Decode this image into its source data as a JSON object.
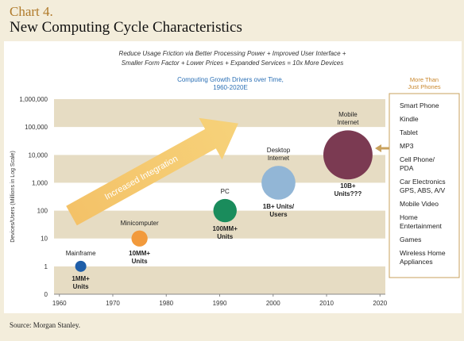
{
  "chart_data": {
    "type": "bubble",
    "chart_number": "Chart 4.",
    "title": "New Computing Cycle Characteristics",
    "note": "Reduce Usage Friction via Better Processing Power + Improved User Interface +\nSmaller Form Factor + Lower Prices + Expanded Services = 10x More Devices",
    "subtitle": "Computing Growth Drivers over Time,\n1960-2020E",
    "ylabel": "Devices/Users (Millions in Log Scale)",
    "annotation": "Increased Integration",
    "source": "Source: Morgan Stanley.",
    "x": [
      1964,
      1975,
      1991,
      2001,
      2014
    ],
    "values": [
      1,
      10,
      100,
      1000,
      10000
    ],
    "labels": [
      "Mainframe",
      "Minicomputer",
      "PC",
      "Desktop\nInternet",
      "Mobile\nInternet"
    ],
    "value_labels": [
      "1MM+\nUnits",
      "10MM+\nUnits",
      "100MM+\nUnits",
      "1B+ Units/\nUsers",
      "10B+\nUnits???"
    ],
    "colors": [
      "#1f5ea8",
      "#f29a3c",
      "#1a8c5c",
      "#92b6d6",
      "#7b3a52"
    ],
    "xlim": [
      1959,
      2021
    ],
    "xticks": [
      1960,
      1970,
      1980,
      1990,
      2000,
      2010,
      2020
    ],
    "ylim": [
      0.1,
      1000000
    ],
    "yticks": [
      {
        "value": 0.1,
        "label": "0"
      },
      1,
      10,
      100,
      {
        "value": 1000,
        "label": "1,000"
      },
      {
        "value": 10000,
        "label": "10,000"
      },
      {
        "value": 100000,
        "label": "100,000"
      },
      {
        "value": 1000000,
        "label": "1,000,000"
      }
    ],
    "y_scale": "log",
    "grid_bands": true,
    "callout": {
      "title": "More Than\nJust Phones",
      "items": [
        "Smart Phone",
        "Kindle",
        "Tablet",
        "MP3",
        "Cell Phone/\nPDA",
        "Car Electronics\nGPS, ABS, A/V",
        "Mobile Video",
        "Home\nEntertainment",
        "Games",
        "Wireless Home\nAppliances"
      ]
    }
  }
}
